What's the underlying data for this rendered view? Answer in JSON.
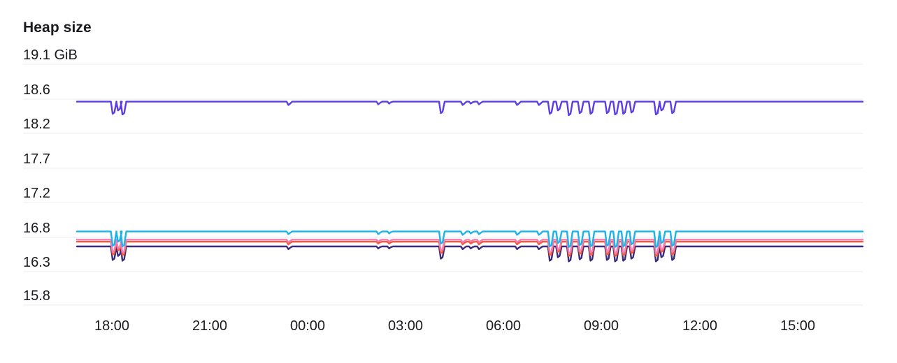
{
  "chart_data": {
    "type": "line",
    "title": "Heap size",
    "y_unit": "GiB",
    "y_ticks": [
      "19.1 GiB",
      "18.6",
      "18.2",
      "17.7",
      "17.2",
      "16.8",
      "16.3",
      "15.8"
    ],
    "y_tick_values": [
      19.1,
      18.6,
      18.2,
      17.7,
      17.2,
      16.8,
      16.3,
      15.8
    ],
    "ylim": [
      15.65,
      19.15
    ],
    "x_ticks": [
      "18:00",
      "21:00",
      "00:00",
      "03:00",
      "06:00",
      "09:00",
      "12:00",
      "15:00"
    ],
    "x_range": [
      "16:48",
      "16:48 (+1 day)"
    ],
    "grid": true,
    "legend": "none",
    "series": [
      {
        "color": "#5b3de6",
        "base": 18.55,
        "dips": [
          {
            "t": "18:02",
            "v": 18.37
          },
          {
            "t": "18:12",
            "v": 18.42
          },
          {
            "t": "18:20",
            "v": 18.36
          },
          {
            "t": "23:25",
            "v": 18.5
          },
          {
            "t": "02:10",
            "v": 18.51
          },
          {
            "t": "02:30",
            "v": 18.52
          },
          {
            "t": "04:05",
            "v": 18.38
          },
          {
            "t": "04:45",
            "v": 18.5
          },
          {
            "t": "05:00",
            "v": 18.52
          },
          {
            "t": "05:15",
            "v": 18.51
          },
          {
            "t": "06:25",
            "v": 18.5
          },
          {
            "t": "07:05",
            "v": 18.5
          },
          {
            "t": "07:25",
            "v": 18.37
          },
          {
            "t": "07:40",
            "v": 18.42
          },
          {
            "t": "08:00",
            "v": 18.35
          },
          {
            "t": "08:20",
            "v": 18.38
          },
          {
            "t": "08:40",
            "v": 18.37
          },
          {
            "t": "09:10",
            "v": 18.38
          },
          {
            "t": "09:25",
            "v": 18.36
          },
          {
            "t": "09:40",
            "v": 18.37
          },
          {
            "t": "09:55",
            "v": 18.39
          },
          {
            "t": "10:40",
            "v": 18.36
          },
          {
            "t": "10:50",
            "v": 18.42
          },
          {
            "t": "11:10",
            "v": 18.38
          }
        ]
      },
      {
        "color": "#1ab4ea",
        "base": 16.64,
        "dips": [
          {
            "t": "18:02",
            "v": 16.43
          },
          {
            "t": "18:12",
            "v": 16.49
          },
          {
            "t": "18:20",
            "v": 16.42
          },
          {
            "t": "23:25",
            "v": 16.6
          },
          {
            "t": "02:10",
            "v": 16.6
          },
          {
            "t": "02:30",
            "v": 16.61
          },
          {
            "t": "04:05",
            "v": 16.46
          },
          {
            "t": "04:45",
            "v": 16.59
          },
          {
            "t": "05:00",
            "v": 16.61
          },
          {
            "t": "05:15",
            "v": 16.6
          },
          {
            "t": "06:25",
            "v": 16.59
          },
          {
            "t": "07:05",
            "v": 16.59
          },
          {
            "t": "07:25",
            "v": 16.42
          },
          {
            "t": "07:40",
            "v": 16.47
          },
          {
            "t": "08:00",
            "v": 16.41
          },
          {
            "t": "08:20",
            "v": 16.44
          },
          {
            "t": "08:40",
            "v": 16.42
          },
          {
            "t": "09:10",
            "v": 16.43
          },
          {
            "t": "09:25",
            "v": 16.41
          },
          {
            "t": "09:40",
            "v": 16.42
          },
          {
            "t": "09:55",
            "v": 16.45
          },
          {
            "t": "10:40",
            "v": 16.41
          },
          {
            "t": "10:50",
            "v": 16.47
          },
          {
            "t": "11:10",
            "v": 16.43
          }
        ]
      },
      {
        "color": "#f27eb4",
        "base": 16.52,
        "dips": [
          {
            "t": "18:02",
            "v": 16.34
          },
          {
            "t": "18:12",
            "v": 16.39
          },
          {
            "t": "18:20",
            "v": 16.33
          },
          {
            "t": "23:25",
            "v": 16.48
          },
          {
            "t": "02:10",
            "v": 16.49
          },
          {
            "t": "02:30",
            "v": 16.49
          },
          {
            "t": "04:05",
            "v": 16.36
          },
          {
            "t": "04:45",
            "v": 16.48
          },
          {
            "t": "05:00",
            "v": 16.49
          },
          {
            "t": "05:15",
            "v": 16.48
          },
          {
            "t": "06:25",
            "v": 16.48
          },
          {
            "t": "07:05",
            "v": 16.48
          },
          {
            "t": "07:25",
            "v": 16.33
          },
          {
            "t": "07:40",
            "v": 16.37
          },
          {
            "t": "08:00",
            "v": 16.32
          },
          {
            "t": "08:20",
            "v": 16.35
          },
          {
            "t": "08:40",
            "v": 16.33
          },
          {
            "t": "09:10",
            "v": 16.34
          },
          {
            "t": "09:25",
            "v": 16.32
          },
          {
            "t": "09:40",
            "v": 16.33
          },
          {
            "t": "09:55",
            "v": 16.36
          },
          {
            "t": "10:40",
            "v": 16.32
          },
          {
            "t": "10:50",
            "v": 16.37
          },
          {
            "t": "11:10",
            "v": 16.34
          }
        ]
      },
      {
        "color": "#f25a3c",
        "base": 16.49,
        "dips": [
          {
            "t": "18:02",
            "v": 16.3
          },
          {
            "t": "18:12",
            "v": 16.36
          },
          {
            "t": "18:20",
            "v": 16.29
          },
          {
            "t": "23:25",
            "v": 16.45
          },
          {
            "t": "02:10",
            "v": 16.46
          },
          {
            "t": "02:30",
            "v": 16.46
          },
          {
            "t": "04:05",
            "v": 16.32
          },
          {
            "t": "04:45",
            "v": 16.45
          },
          {
            "t": "05:00",
            "v": 16.46
          },
          {
            "t": "05:15",
            "v": 16.45
          },
          {
            "t": "06:25",
            "v": 16.45
          },
          {
            "t": "07:05",
            "v": 16.45
          },
          {
            "t": "07:25",
            "v": 16.29
          },
          {
            "t": "07:40",
            "v": 16.34
          },
          {
            "t": "08:00",
            "v": 16.28
          },
          {
            "t": "08:20",
            "v": 16.31
          },
          {
            "t": "08:40",
            "v": 16.29
          },
          {
            "t": "09:10",
            "v": 16.3
          },
          {
            "t": "09:25",
            "v": 16.28
          },
          {
            "t": "09:40",
            "v": 16.29
          },
          {
            "t": "09:55",
            "v": 16.32
          },
          {
            "t": "10:40",
            "v": 16.28
          },
          {
            "t": "10:50",
            "v": 16.34
          },
          {
            "t": "11:10",
            "v": 16.3
          }
        ]
      },
      {
        "color": "#3b2a7a",
        "base": 16.42,
        "dips": [
          {
            "t": "18:02",
            "v": 16.22
          },
          {
            "t": "18:12",
            "v": 16.28
          },
          {
            "t": "18:20",
            "v": 16.21
          },
          {
            "t": "23:25",
            "v": 16.38
          },
          {
            "t": "02:10",
            "v": 16.39
          },
          {
            "t": "02:30",
            "v": 16.39
          },
          {
            "t": "04:05",
            "v": 16.24
          },
          {
            "t": "04:45",
            "v": 16.38
          },
          {
            "t": "05:00",
            "v": 16.39
          },
          {
            "t": "05:15",
            "v": 16.38
          },
          {
            "t": "06:25",
            "v": 16.38
          },
          {
            "t": "07:05",
            "v": 16.38
          },
          {
            "t": "07:25",
            "v": 16.21
          },
          {
            "t": "07:40",
            "v": 16.26
          },
          {
            "t": "08:00",
            "v": 16.2
          },
          {
            "t": "08:20",
            "v": 16.23
          },
          {
            "t": "08:40",
            "v": 16.21
          },
          {
            "t": "09:10",
            "v": 16.22
          },
          {
            "t": "09:25",
            "v": 16.2
          },
          {
            "t": "09:40",
            "v": 16.21
          },
          {
            "t": "09:55",
            "v": 16.24
          },
          {
            "t": "10:40",
            "v": 16.2
          },
          {
            "t": "10:50",
            "v": 16.26
          },
          {
            "t": "11:10",
            "v": 16.22
          }
        ]
      }
    ]
  }
}
